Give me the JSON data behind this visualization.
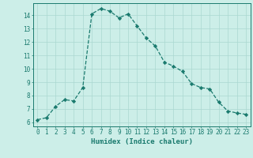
{
  "x": [
    0,
    1,
    2,
    3,
    4,
    5,
    6,
    7,
    8,
    9,
    10,
    11,
    12,
    13,
    14,
    15,
    16,
    17,
    18,
    19,
    20,
    21,
    22,
    23
  ],
  "y": [
    6.2,
    6.35,
    7.2,
    7.7,
    7.6,
    8.6,
    14.1,
    14.5,
    14.3,
    13.8,
    14.1,
    13.2,
    12.3,
    11.7,
    10.5,
    10.2,
    9.8,
    8.9,
    8.6,
    8.5,
    7.5,
    6.85,
    6.7,
    6.6
  ],
  "xlabel": "Humidex (Indice chaleur)",
  "xlim": [
    -0.5,
    23.5
  ],
  "ylim": [
    5.7,
    14.9
  ],
  "yticks": [
    6,
    7,
    8,
    9,
    10,
    11,
    12,
    13,
    14
  ],
  "xticks": [
    0,
    1,
    2,
    3,
    4,
    5,
    6,
    7,
    8,
    9,
    10,
    11,
    12,
    13,
    14,
    15,
    16,
    17,
    18,
    19,
    20,
    21,
    22,
    23
  ],
  "line_color": "#1a7a6e",
  "marker": "D",
  "marker_size": 2.2,
  "bg_color": "#cceee8",
  "grid_color": "#aad8d0",
  "text_color": "#1a7a6e",
  "xlabel_fontsize": 6.5,
  "tick_fontsize": 5.5
}
